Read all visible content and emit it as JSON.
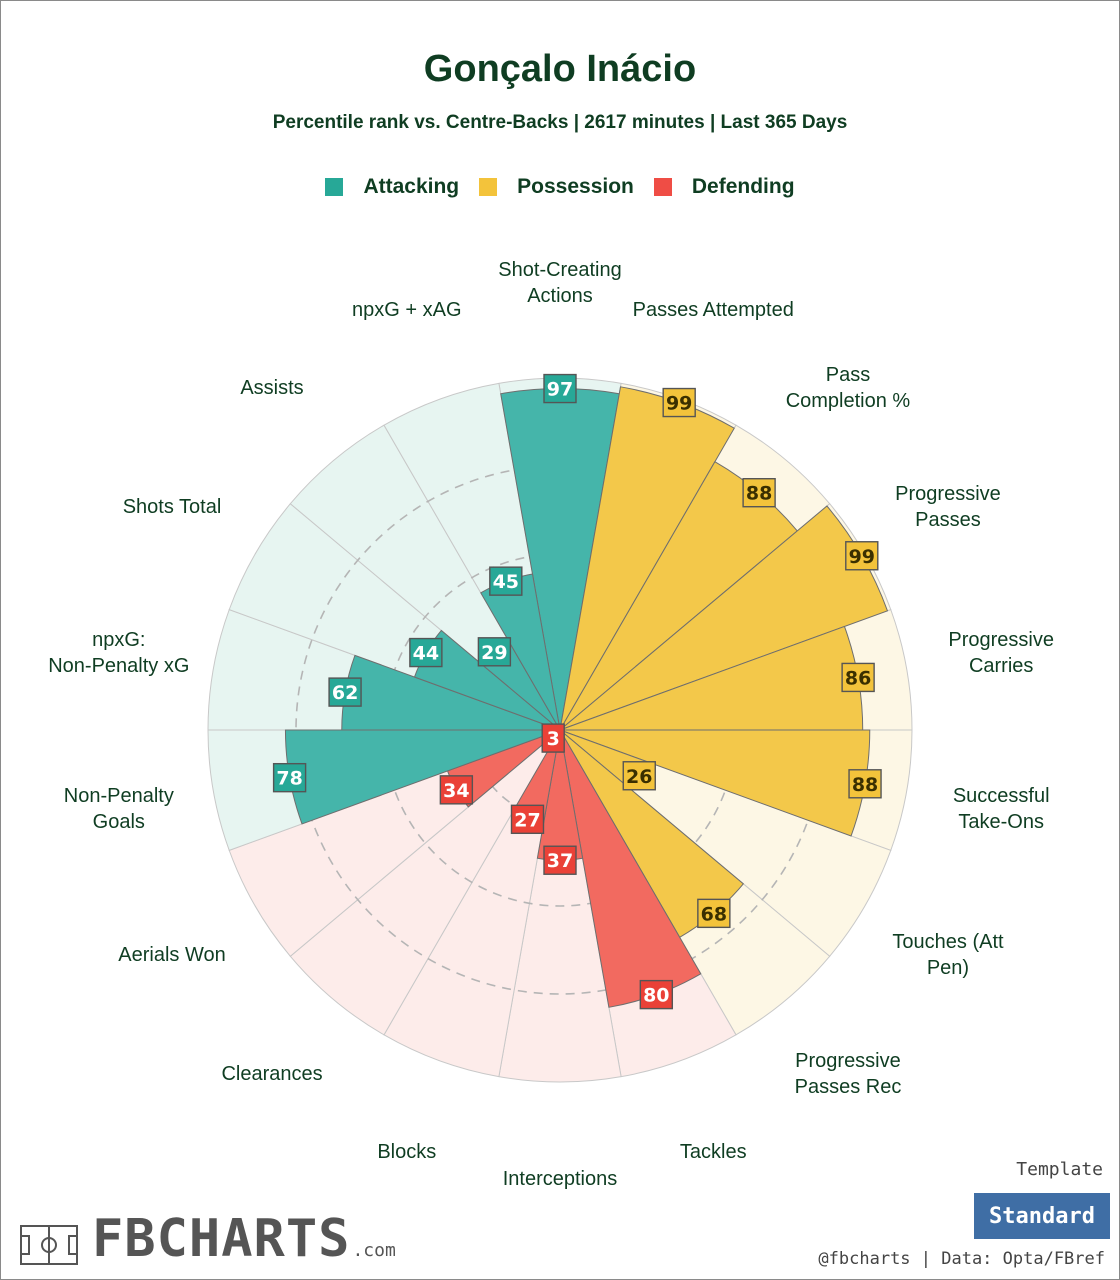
{
  "header": {
    "title": "Gonçalo Inácio",
    "subtitle": "Percentile rank vs. Centre-Backs | 2617 minutes | Last 365 Days"
  },
  "legend": [
    {
      "label": "Attacking",
      "color": "#27a897"
    },
    {
      "label": "Possession",
      "color": "#f3c33b"
    },
    {
      "label": "Defending",
      "color": "#ef4d45"
    }
  ],
  "chart_data": {
    "type": "polar-bar",
    "scale_max": 100,
    "gridlines": [
      25,
      50,
      75
    ],
    "categories": [
      {
        "label": "Shot-Creating Actions",
        "value": 97,
        "group": "Attacking"
      },
      {
        "label": "Passes Attempted",
        "value": 99,
        "group": "Possession"
      },
      {
        "label": "Pass Completion %",
        "value": 88,
        "group": "Possession"
      },
      {
        "label": "Progressive Passes",
        "value": 99,
        "group": "Possession"
      },
      {
        "label": "Progressive Carries",
        "value": 86,
        "group": "Possession"
      },
      {
        "label": "Successful Take-Ons",
        "value": 88,
        "group": "Possession"
      },
      {
        "label": "Touches (Att Pen)",
        "value": 26,
        "group": "Possession"
      },
      {
        "label": "Progressive Passes Rec",
        "value": 68,
        "group": "Possession"
      },
      {
        "label": "Tackles",
        "value": 80,
        "group": "Defending"
      },
      {
        "label": "Interceptions",
        "value": 37,
        "group": "Defending"
      },
      {
        "label": "Blocks",
        "value": 27,
        "group": "Defending"
      },
      {
        "label": "Clearances",
        "value": 3,
        "group": "Defending"
      },
      {
        "label": "Aerials Won",
        "value": 34,
        "group": "Defending"
      },
      {
        "label": "Non-Penalty Goals",
        "value": 78,
        "group": "Attacking"
      },
      {
        "label": "npxG: Non-Penalty xG",
        "value": 62,
        "group": "Attacking"
      },
      {
        "label": "Shots Total",
        "value": 44,
        "group": "Attacking"
      },
      {
        "label": "Assists",
        "value": 29,
        "group": "Attacking"
      },
      {
        "label": "npxG + xAG",
        "value": 45,
        "group": "Attacking"
      }
    ]
  },
  "footer": {
    "template_label": "Template",
    "template_button": "Standard",
    "brand_name": "FBCHARTS",
    "brand_suffix": ".com",
    "credit": "@fbcharts | Data: Opta/FBref"
  }
}
